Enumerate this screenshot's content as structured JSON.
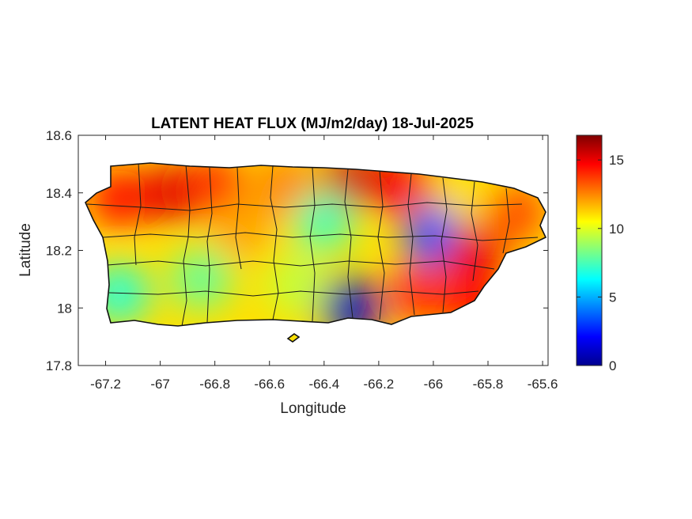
{
  "chart_data": {
    "type": "heatmap",
    "title": "LATENT HEAT FLUX (MJ/m2/day) 18-Jul-2025",
    "xlabel": "Longitude",
    "ylabel": "Latitude",
    "xlim": [
      -67.3,
      -65.58
    ],
    "ylim": [
      17.8,
      18.6
    ],
    "xticks": [
      -67.2,
      -67,
      -66.8,
      -66.6,
      -66.4,
      -66.2,
      -66,
      -65.8,
      -65.6
    ],
    "xtick_labels": [
      "-67.2",
      "-67",
      "-66.8",
      "-66.6",
      "-66.4",
      "-66.2",
      "-66",
      "-65.8",
      "-65.6"
    ],
    "yticks": [
      17.8,
      18,
      18.2,
      18.4,
      18.6
    ],
    "ytick_labels": [
      "17.8",
      "18",
      "18.2",
      "18.4",
      "18.6"
    ],
    "colorbar": {
      "colormap": "jet",
      "range": [
        0,
        16.8
      ],
      "ticks": [
        0,
        5,
        10,
        15
      ],
      "tick_labels": [
        "0",
        "5",
        "10",
        "15"
      ]
    },
    "grid": false,
    "regions": [
      {
        "lon": -67.15,
        "lat": 18.38,
        "value": 14.5
      },
      {
        "lon": -66.95,
        "lat": 18.4,
        "value": 15.2
      },
      {
        "lon": -66.8,
        "lat": 18.42,
        "value": 14.0
      },
      {
        "lon": -66.55,
        "lat": 18.43,
        "value": 12.5
      },
      {
        "lon": -66.3,
        "lat": 18.44,
        "value": 15.5
      },
      {
        "lon": -66.1,
        "lat": 18.43,
        "value": 14.8
      },
      {
        "lon": -65.9,
        "lat": 18.4,
        "value": 11.0
      },
      {
        "lon": -65.7,
        "lat": 18.33,
        "value": 13.5
      },
      {
        "lon": -66.7,
        "lat": 18.28,
        "value": 12.0
      },
      {
        "lon": -66.4,
        "lat": 18.3,
        "value": 7.5
      },
      {
        "lon": -66.0,
        "lat": 18.25,
        "value": 3.5
      },
      {
        "lon": -65.85,
        "lat": 18.18,
        "value": 15.0
      },
      {
        "lon": -66.85,
        "lat": 18.1,
        "value": 8.0
      },
      {
        "lon": -66.5,
        "lat": 18.08,
        "value": 9.5
      },
      {
        "lon": -66.3,
        "lat": 18.0,
        "value": 1.0
      },
      {
        "lon": -66.05,
        "lat": 18.05,
        "value": 14.0
      },
      {
        "lon": -67.15,
        "lat": 18.05,
        "value": 7.0
      },
      {
        "lon": -65.85,
        "lat": 18.02,
        "value": 14.5
      }
    ]
  }
}
